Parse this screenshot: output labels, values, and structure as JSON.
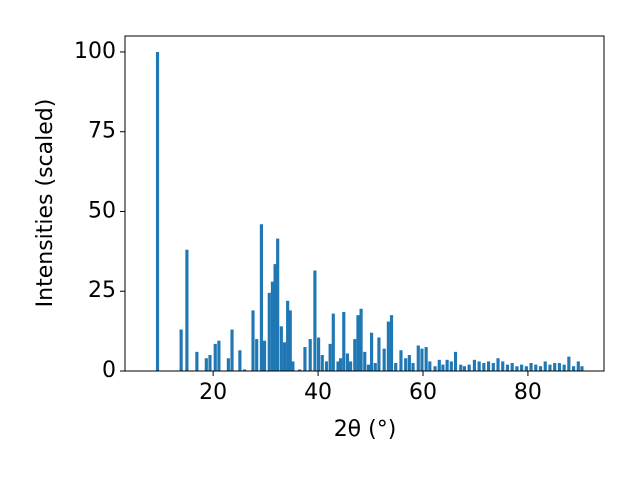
{
  "chart_data": {
    "type": "bar",
    "xlabel": "2θ (°)",
    "ylabel": "Intensities (scaled)",
    "color": "#1f77b4",
    "xlim": [
      3.2,
      94.5
    ],
    "ylim": [
      0,
      105
    ],
    "xticks": [
      20,
      40,
      60,
      80
    ],
    "yticks": [
      0,
      25,
      50,
      75,
      100
    ],
    "x": [
      9.4,
      13.9,
      15.0,
      16.9,
      18.7,
      19.4,
      20.4,
      21.1,
      22.9,
      23.6,
      25.1,
      26.0,
      27.6,
      28.3,
      29.2,
      29.8,
      30.7,
      31.3,
      31.8,
      32.3,
      33.0,
      33.6,
      34.2,
      34.7,
      35.2,
      36.5,
      37.5,
      38.5,
      39.4,
      40.1,
      40.8,
      41.6,
      42.3,
      42.9,
      43.8,
      44.3,
      44.9,
      45.6,
      46.2,
      47.0,
      47.6,
      48.2,
      48.9,
      49.6,
      50.2,
      50.9,
      51.6,
      52.6,
      53.4,
      54.0,
      54.8,
      55.8,
      56.7,
      57.4,
      58.1,
      59.1,
      59.8,
      60.6,
      61.3,
      62.3,
      63.1,
      63.8,
      64.6,
      65.4,
      66.2,
      67.2,
      67.9,
      68.8,
      69.8,
      70.7,
      71.6,
      72.5,
      73.4,
      74.3,
      75.2,
      76.1,
      77.0,
      77.9,
      78.8,
      79.7,
      80.6,
      81.5,
      82.4,
      83.3,
      84.2,
      85.1,
      86.0,
      86.9,
      87.8,
      88.7,
      89.6,
      90.3
    ],
    "values": [
      100,
      13,
      38,
      6,
      4,
      5,
      8.5,
      9.5,
      4,
      13,
      6.5,
      0.5,
      19,
      10,
      46,
      9.5,
      24.5,
      28,
      33.5,
      41.5,
      14,
      9,
      22,
      19,
      3,
      0.5,
      7.5,
      10,
      31.5,
      10.5,
      5,
      3,
      8.5,
      18,
      3,
      4,
      18.5,
      5.5,
      3,
      10,
      17.5,
      19.5,
      6,
      2,
      12,
      2.5,
      10.5,
      7,
      15.5,
      17.5,
      2.5,
      6.5,
      4,
      5,
      2.5,
      8,
      7,
      7.5,
      3,
      1.5,
      3.5,
      2,
      3.5,
      3,
      6,
      2,
      1.5,
      2,
      3.5,
      3,
      2.5,
      3,
      2.5,
      4,
      3,
      2,
      2.5,
      1.5,
      2,
      1.5,
      2.5,
      2,
      1.5,
      3,
      2,
      2.5,
      2.5,
      2,
      4.5,
      1.5,
      3,
      1.5
    ]
  }
}
